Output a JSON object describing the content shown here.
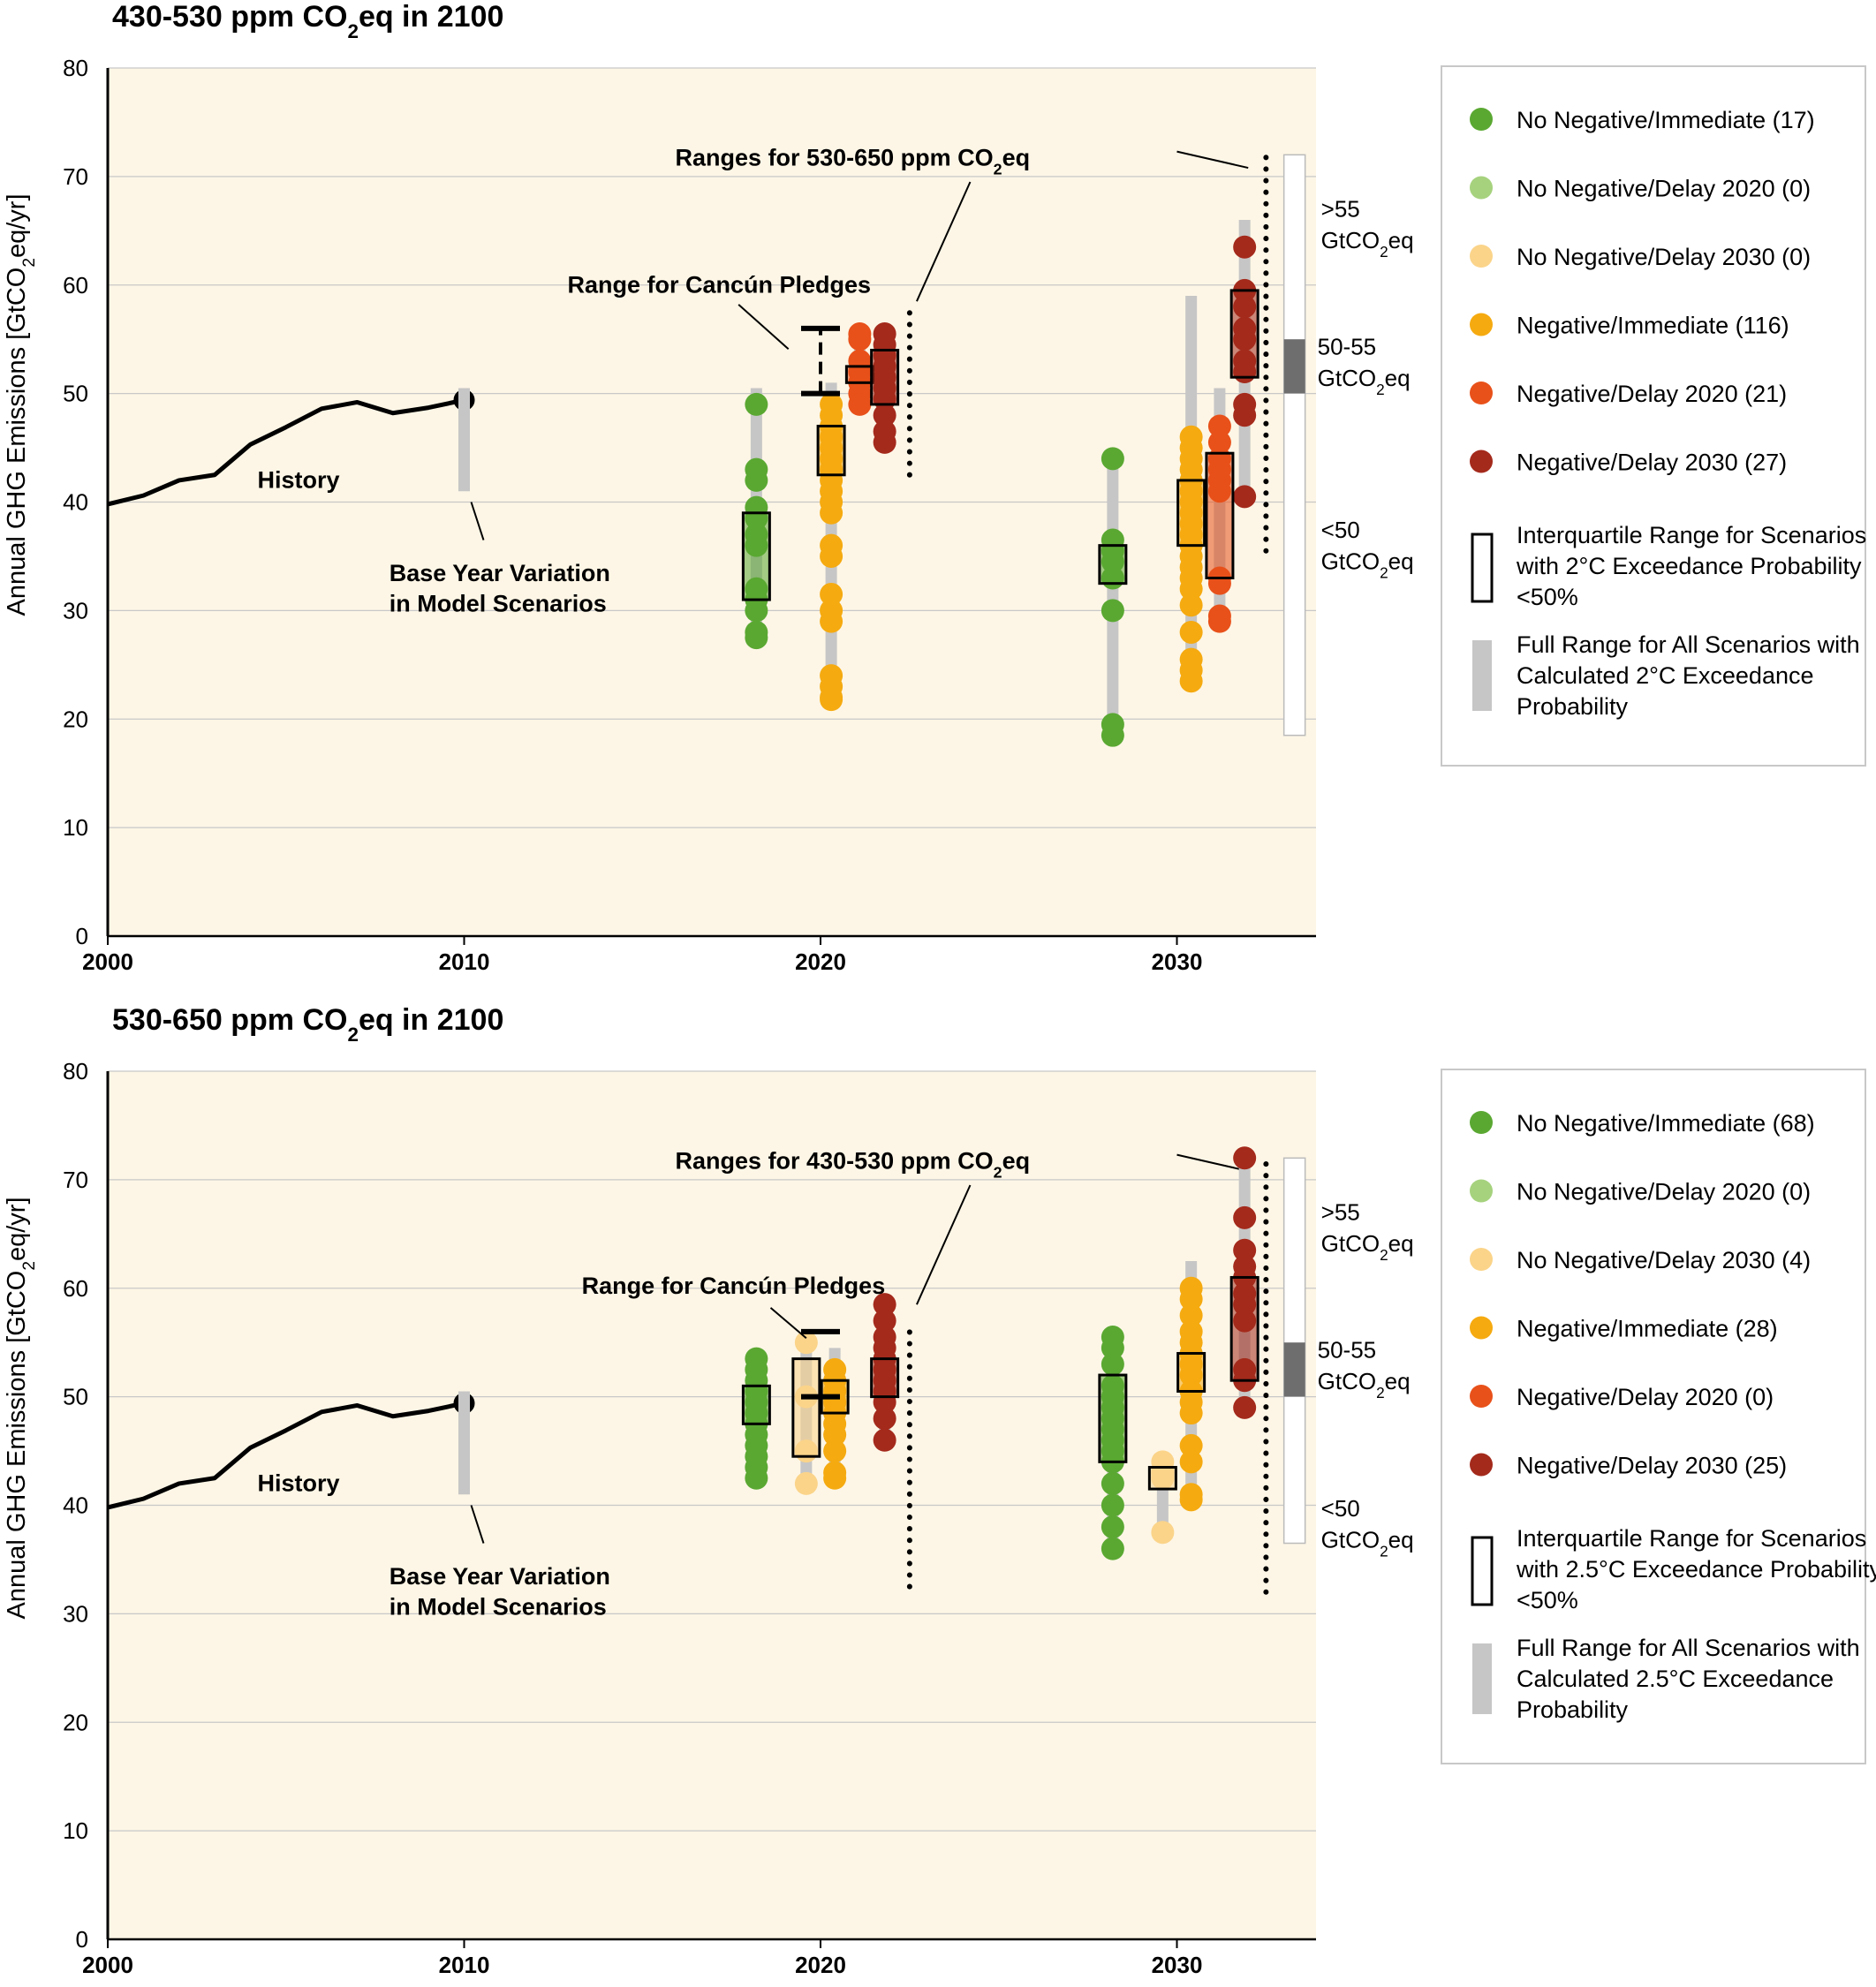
{
  "colors": {
    "no_neg_immediate": "#5aa832",
    "no_neg_delay2020": "#a6d27e",
    "no_neg_delay2030": "#fbd48a",
    "neg_immediate": "#f5aa10",
    "neg_delay2020": "#e8511a",
    "neg_delay2030": "#a42a1c",
    "plot_bg": "#fdf6e6",
    "full_range": "#c6c6c6",
    "ghg_50_55": "#6e6e6e"
  },
  "chart_data": [
    {
      "type": "scatter",
      "title_main": "430-530 ppm CO",
      "title_sub": "2",
      "title_end": "eq in 2100",
      "ylabel_main": "Annual GHG Emissions [GtCO",
      "ylabel_sub": "2",
      "ylabel_end": "eq/yr]",
      "ylim": [
        0,
        80
      ],
      "xlim": [
        2000,
        2034
      ],
      "yticks": [
        0,
        10,
        20,
        30,
        40,
        50,
        60,
        70,
        80
      ],
      "xticks": [
        2000,
        2010,
        2020,
        2030
      ],
      "grid": true,
      "history": {
        "label": "History",
        "x": [
          2000,
          2001,
          2002,
          2003,
          2004,
          2005,
          2006,
          2007,
          2008,
          2009,
          2010
        ],
        "y": [
          39.8,
          40.6,
          42.0,
          42.5,
          45.3,
          46.9,
          48.6,
          49.2,
          48.2,
          48.7,
          49.4
        ]
      },
      "base_year": {
        "x": 2010,
        "range": [
          41,
          50.5
        ],
        "label_line1": "Base Year Variation",
        "label_line2": "in Model Scenarios"
      },
      "pledges": {
        "label": "Range for Cancún Pledges",
        "x": 2020,
        "range": [
          50,
          56
        ],
        "dashed": true
      },
      "alt_ranges": {
        "label_main": "Ranges for 530-650 ppm CO",
        "label_sub": "2",
        "label_end": "eq",
        "x2020": 2022.5,
        "y2020": [
          42.5,
          58
        ],
        "x2030": 2032.5,
        "y2030": [
          35.5,
          72
        ]
      },
      "ghg_bar": {
        "x": 2033.3,
        "range": [
          18.5,
          72
        ],
        "mid_band": [
          50,
          55
        ],
        "label_high_1": ">55",
        "label_high_2": "GtCO",
        "label_high_sub": "2",
        "label_high_3": "eq",
        "label_mid_1": "50-55",
        "label_mid_2": "GtCO",
        "label_mid_sub": "2",
        "label_mid_3": "eq",
        "label_low_1": "<50",
        "label_low_2": "GtCO",
        "label_low_sub": "2",
        "label_low_3": "eq"
      },
      "series": [
        {
          "name": "No Negative/Immediate (17)",
          "key": "no_neg_immediate",
          "groups": [
            {
              "x": 2018.2,
              "points": [
                49,
                43,
                42,
                39.5,
                38.5,
                37,
                36,
                32,
                31,
                30,
                28,
                27.5
              ],
              "range": [
                27.5,
                50.5
              ],
              "iqr": [
                31,
                39
              ]
            },
            {
              "x": 2028.2,
              "points": [
                44,
                36.5,
                35.5,
                34.5,
                33,
                30,
                19.5,
                18.5
              ],
              "range": [
                18.5,
                44
              ],
              "iqr": [
                32.5,
                36
              ]
            }
          ]
        },
        {
          "name": "No Negative/Delay 2020 (0)",
          "key": "no_neg_delay2020",
          "groups": []
        },
        {
          "name": "No Negative/Delay 2030 (0)",
          "key": "no_neg_delay2030",
          "groups": []
        },
        {
          "name": "Negative/Immediate (116)",
          "key": "neg_immediate",
          "groups": [
            {
              "x": 2020.3,
              "points": [
                49,
                48,
                47,
                46,
                45,
                44,
                43,
                42,
                41,
                40,
                39,
                36,
                35,
                31.5,
                30,
                29,
                24,
                23,
                22,
                21.8
              ],
              "range": [
                21.8,
                51
              ],
              "iqr": [
                42.5,
                47
              ]
            },
            {
              "x": 2030.4,
              "points": [
                46,
                45,
                44,
                43,
                42,
                41,
                40,
                39,
                38,
                37,
                36,
                35,
                34,
                33,
                32,
                30.5,
                28,
                25.5,
                24.5,
                23.5
              ],
              "range": [
                23.5,
                59
              ],
              "iqr": [
                36,
                42
              ]
            }
          ]
        },
        {
          "name": "Negative/Delay 2020 (21)",
          "key": "neg_delay2020",
          "groups": [
            {
              "x": 2021.1,
              "points": [
                55.5,
                55,
                53,
                52,
                51,
                50,
                49
              ],
              "range": [
                49,
                56
              ],
              "iqr": [
                51,
                52.5
              ]
            },
            {
              "x": 2031.2,
              "points": [
                47,
                45.5,
                44,
                43,
                42,
                41,
                33,
                32.5,
                29.5,
                29
              ],
              "range": [
                29,
                50.5
              ],
              "iqr": [
                33,
                44.5
              ]
            }
          ]
        },
        {
          "name": "Negative/Delay 2030 (27)",
          "key": "neg_delay2030",
          "groups": [
            {
              "x": 2021.8,
              "points": [
                55.5,
                54.5,
                53.5,
                52.5,
                51.5,
                50.5,
                49.5,
                48,
                46.5,
                45.5
              ],
              "range": [
                45.5,
                56
              ],
              "iqr": [
                49,
                54
              ]
            },
            {
              "x": 2031.9,
              "points": [
                63.5,
                59.5,
                58,
                56,
                55,
                53,
                52,
                49,
                48,
                40.5
              ],
              "range": [
                40.5,
                66
              ],
              "iqr": [
                51.5,
                59.5
              ]
            }
          ]
        }
      ],
      "legend": {
        "iqr_line1": "Interquartile Range for Scenarios",
        "iqr_line2": "with 2°C Exceedance Probability",
        "iqr_line3": "<50%",
        "full_line1": "Full Range for All Scenarios with",
        "full_line2": "Calculated 2°C Exceedance",
        "full_line3": "Probability"
      }
    },
    {
      "type": "scatter",
      "title_main": "530-650 ppm CO",
      "title_sub": "2",
      "title_end": "eq in 2100",
      "ylabel_main": "Annual GHG Emissions [GtCO",
      "ylabel_sub": "2",
      "ylabel_end": "eq/yr]",
      "ylim": [
        0,
        80
      ],
      "xlim": [
        2000,
        2034
      ],
      "yticks": [
        0,
        10,
        20,
        30,
        40,
        50,
        60,
        70,
        80
      ],
      "xticks": [
        2000,
        2010,
        2020,
        2030
      ],
      "grid": true,
      "history": {
        "label": "History",
        "x": [
          2000,
          2001,
          2002,
          2003,
          2004,
          2005,
          2006,
          2007,
          2008,
          2009,
          2010
        ],
        "y": [
          39.8,
          40.6,
          42.0,
          42.5,
          45.3,
          46.9,
          48.6,
          49.2,
          48.2,
          48.7,
          49.4
        ]
      },
      "base_year": {
        "x": 2010,
        "range": [
          41,
          50.5
        ],
        "label_line1": "Base Year Variation",
        "label_line2": "in Model Scenarios"
      },
      "pledges": {
        "label": "Range for Cancún Pledges",
        "x": 2020,
        "range": [
          50,
          56
        ],
        "dashed": false
      },
      "alt_ranges": {
        "label_main": "Ranges for 430-530 ppm CO",
        "label_sub": "2",
        "label_end": "eq",
        "x2020": 2022.5,
        "y2020": [
          32.5,
          57
        ],
        "x2030": 2032.5,
        "y2030": [
          32,
          72
        ]
      },
      "ghg_bar": {
        "x": 2033.3,
        "range": [
          36.5,
          72
        ],
        "mid_band": [
          50,
          55
        ],
        "label_high_1": ">55",
        "label_high_2": "GtCO",
        "label_high_sub": "2",
        "label_high_3": "eq",
        "label_mid_1": "50-55",
        "label_mid_2": "GtCO",
        "label_mid_sub": "2",
        "label_mid_3": "eq",
        "label_low_1": "<50",
        "label_low_2": "GtCO",
        "label_low_sub": "2",
        "label_low_3": "eq"
      },
      "series": [
        {
          "name": "No Negative/Immediate (68)",
          "key": "no_neg_immediate",
          "groups": [
            {
              "x": 2018.2,
              "points": [
                53.5,
                52.5,
                51.5,
                50.5,
                49.5,
                48.5,
                47.5,
                46.5,
                45.5,
                44.5,
                43.5,
                42.5
              ],
              "range": [
                42.5,
                54
              ],
              "iqr": [
                47.5,
                51
              ]
            },
            {
              "x": 2028.2,
              "points": [
                55.5,
                54.5,
                53,
                51,
                50,
                49,
                48,
                47,
                46,
                45,
                44,
                42,
                40,
                38,
                36
              ],
              "range": [
                36,
                56
              ],
              "iqr": [
                44,
                52
              ]
            }
          ]
        },
        {
          "name": "No Negative/Delay 2020 (0)",
          "key": "no_neg_delay2020",
          "groups": []
        },
        {
          "name": "No Negative/Delay 2030 (4)",
          "key": "no_neg_delay2030",
          "groups": [
            {
              "x": 2019.6,
              "points": [
                55,
                50,
                45,
                42
              ],
              "range": [
                42,
                55
              ],
              "iqr": [
                44.5,
                53.5
              ]
            },
            {
              "x": 2029.6,
              "points": [
                44,
                43,
                42.5,
                37.5
              ],
              "range": [
                37.5,
                44
              ],
              "iqr": [
                41.5,
                43.5
              ]
            }
          ]
        },
        {
          "name": "Negative/Immediate (28)",
          "key": "neg_immediate",
          "groups": [
            {
              "x": 2020.4,
              "points": [
                52.5,
                51.5,
                50.5,
                49.5,
                48.5,
                47.5,
                46.5,
                45,
                43,
                42.5
              ],
              "range": [
                42.5,
                54.5
              ],
              "iqr": [
                48.5,
                51.5
              ]
            },
            {
              "x": 2030.4,
              "points": [
                60,
                59,
                57.5,
                56,
                55,
                54,
                53,
                52,
                50.5,
                49.5,
                48.5,
                45.5,
                44,
                41,
                40.5
              ],
              "range": [
                40.5,
                62.5
              ],
              "iqr": [
                50.5,
                54
              ]
            }
          ]
        },
        {
          "name": "Negative/Delay 2020 (0)",
          "key": "neg_delay2020",
          "groups": []
        },
        {
          "name": "Negative/Delay 2030 (25)",
          "key": "neg_delay2030",
          "groups": [
            {
              "x": 2021.8,
              "points": [
                58.5,
                57,
                55.5,
                54.5,
                53.5,
                52.5,
                51.5,
                50.5,
                49.5,
                48,
                46
              ],
              "range": [
                46,
                58.5
              ],
              "iqr": [
                50,
                53.5
              ]
            },
            {
              "x": 2031.9,
              "points": [
                72,
                66.5,
                63.5,
                62,
                61,
                59.5,
                58.5,
                57,
                52.5,
                51.5,
                49
              ],
              "range": [
                49,
                72
              ],
              "iqr": [
                51.5,
                61
              ]
            }
          ]
        }
      ],
      "legend": {
        "iqr_line1": "Interquartile Range for Scenarios",
        "iqr_line2": "with 2.5°C Exceedance Probability",
        "iqr_line3": "<50%",
        "full_line1": "Full Range for All Scenarios with",
        "full_line2": "Calculated 2.5°C Exceedance",
        "full_line3": "Probability"
      }
    }
  ]
}
